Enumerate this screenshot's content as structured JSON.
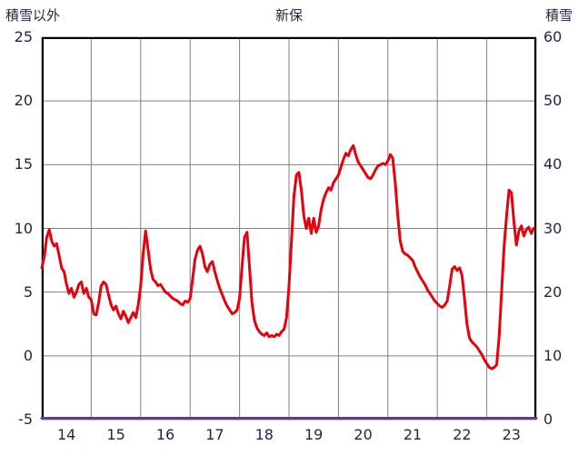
{
  "titles": {
    "left": "積雪以外",
    "center": "新保",
    "right": "積雪"
  },
  "chart_data": {
    "type": "line",
    "title": "新保",
    "x_axis": {
      "min": 14,
      "max": 24,
      "labels": [
        "14",
        "15",
        "16",
        "17",
        "18",
        "19",
        "20",
        "21",
        "22",
        "23"
      ]
    },
    "left_axis": {
      "label": "積雪以外",
      "min": -5,
      "max": 25,
      "ticks": [
        25,
        20,
        15,
        10,
        5,
        0,
        -5
      ]
    },
    "right_axis": {
      "label": "積雪",
      "min": 0,
      "max": 60,
      "ticks": [
        60,
        50,
        40,
        30,
        20,
        10,
        0
      ]
    },
    "grid": true,
    "legend": "none",
    "colors": {
      "temperature_line": "#e8000d",
      "snow_line": "#7030a0",
      "grid": "#808080",
      "border": "#000000",
      "text": "#1f2540",
      "background": "#ffffff"
    },
    "series": [
      {
        "name": "積雪以外",
        "axis": "left",
        "color": "#e8000d",
        "width": 3,
        "points": [
          [
            14.0,
            6.9
          ],
          [
            14.05,
            7.8
          ],
          [
            14.1,
            9.3
          ],
          [
            14.15,
            9.9
          ],
          [
            14.2,
            9.0
          ],
          [
            14.25,
            8.6
          ],
          [
            14.3,
            8.8
          ],
          [
            14.35,
            7.9
          ],
          [
            14.4,
            6.9
          ],
          [
            14.45,
            6.6
          ],
          [
            14.5,
            5.6
          ],
          [
            14.55,
            4.9
          ],
          [
            14.6,
            5.3
          ],
          [
            14.65,
            4.6
          ],
          [
            14.7,
            5.0
          ],
          [
            14.75,
            5.6
          ],
          [
            14.8,
            5.8
          ],
          [
            14.85,
            4.9
          ],
          [
            14.9,
            5.3
          ],
          [
            14.95,
            4.6
          ],
          [
            15.0,
            4.4
          ],
          [
            15.05,
            3.3
          ],
          [
            15.1,
            3.2
          ],
          [
            15.15,
            4.2
          ],
          [
            15.2,
            5.5
          ],
          [
            15.25,
            5.8
          ],
          [
            15.3,
            5.6
          ],
          [
            15.35,
            4.8
          ],
          [
            15.4,
            4.0
          ],
          [
            15.45,
            3.6
          ],
          [
            15.5,
            3.9
          ],
          [
            15.55,
            3.3
          ],
          [
            15.6,
            2.9
          ],
          [
            15.65,
            3.5
          ],
          [
            15.7,
            3.1
          ],
          [
            15.75,
            2.6
          ],
          [
            15.8,
            3.0
          ],
          [
            15.85,
            3.4
          ],
          [
            15.9,
            3.0
          ],
          [
            15.95,
            4.0
          ],
          [
            16.0,
            5.5
          ],
          [
            16.05,
            8.0
          ],
          [
            16.1,
            9.8
          ],
          [
            16.15,
            8.3
          ],
          [
            16.2,
            6.8
          ],
          [
            16.25,
            6.0
          ],
          [
            16.3,
            5.8
          ],
          [
            16.35,
            5.5
          ],
          [
            16.4,
            5.6
          ],
          [
            16.45,
            5.3
          ],
          [
            16.5,
            5.0
          ],
          [
            16.55,
            4.9
          ],
          [
            16.6,
            4.7
          ],
          [
            16.65,
            4.5
          ],
          [
            16.7,
            4.4
          ],
          [
            16.75,
            4.3
          ],
          [
            16.8,
            4.1
          ],
          [
            16.85,
            4.0
          ],
          [
            16.9,
            4.3
          ],
          [
            16.95,
            4.2
          ],
          [
            17.0,
            4.5
          ],
          [
            17.05,
            6.0
          ],
          [
            17.1,
            7.6
          ],
          [
            17.15,
            8.3
          ],
          [
            17.2,
            8.6
          ],
          [
            17.25,
            8.0
          ],
          [
            17.3,
            7.0
          ],
          [
            17.35,
            6.6
          ],
          [
            17.4,
            7.2
          ],
          [
            17.45,
            7.4
          ],
          [
            17.5,
            6.6
          ],
          [
            17.55,
            5.9
          ],
          [
            17.6,
            5.3
          ],
          [
            17.65,
            4.8
          ],
          [
            17.7,
            4.3
          ],
          [
            17.75,
            3.9
          ],
          [
            17.8,
            3.6
          ],
          [
            17.85,
            3.3
          ],
          [
            17.9,
            3.4
          ],
          [
            17.95,
            3.6
          ],
          [
            18.0,
            4.5
          ],
          [
            18.05,
            7.0
          ],
          [
            18.1,
            9.3
          ],
          [
            18.15,
            9.7
          ],
          [
            18.2,
            7.0
          ],
          [
            18.25,
            4.2
          ],
          [
            18.3,
            2.8
          ],
          [
            18.35,
            2.2
          ],
          [
            18.4,
            1.9
          ],
          [
            18.45,
            1.7
          ],
          [
            18.5,
            1.6
          ],
          [
            18.55,
            1.8
          ],
          [
            18.6,
            1.5
          ],
          [
            18.65,
            1.6
          ],
          [
            18.7,
            1.5
          ],
          [
            18.75,
            1.7
          ],
          [
            18.8,
            1.6
          ],
          [
            18.85,
            1.9
          ],
          [
            18.9,
            2.1
          ],
          [
            18.95,
            3.0
          ],
          [
            19.0,
            5.5
          ],
          [
            19.05,
            9.0
          ],
          [
            19.1,
            12.5
          ],
          [
            19.15,
            14.2
          ],
          [
            19.2,
            14.4
          ],
          [
            19.25,
            13.0
          ],
          [
            19.3,
            11.0
          ],
          [
            19.35,
            10.0
          ],
          [
            19.4,
            10.8
          ],
          [
            19.45,
            9.6
          ],
          [
            19.5,
            10.8
          ],
          [
            19.55,
            9.7
          ],
          [
            19.6,
            10.2
          ],
          [
            19.65,
            11.5
          ],
          [
            19.7,
            12.3
          ],
          [
            19.75,
            12.8
          ],
          [
            19.8,
            13.2
          ],
          [
            19.85,
            13.0
          ],
          [
            19.9,
            13.6
          ],
          [
            19.95,
            13.9
          ],
          [
            20.0,
            14.2
          ],
          [
            20.05,
            14.8
          ],
          [
            20.1,
            15.4
          ],
          [
            20.15,
            15.9
          ],
          [
            20.2,
            15.7
          ],
          [
            20.25,
            16.2
          ],
          [
            20.3,
            16.5
          ],
          [
            20.35,
            15.8
          ],
          [
            20.4,
            15.2
          ],
          [
            20.45,
            14.9
          ],
          [
            20.5,
            14.6
          ],
          [
            20.55,
            14.3
          ],
          [
            20.6,
            14.0
          ],
          [
            20.65,
            13.9
          ],
          [
            20.7,
            14.2
          ],
          [
            20.75,
            14.6
          ],
          [
            20.8,
            14.9
          ],
          [
            20.85,
            15.0
          ],
          [
            20.9,
            15.1
          ],
          [
            20.95,
            15.0
          ],
          [
            21.0,
            15.3
          ],
          [
            21.05,
            15.8
          ],
          [
            21.1,
            15.5
          ],
          [
            21.15,
            13.5
          ],
          [
            21.2,
            11.0
          ],
          [
            21.25,
            9.0
          ],
          [
            21.3,
            8.2
          ],
          [
            21.35,
            8.0
          ],
          [
            21.4,
            7.9
          ],
          [
            21.45,
            7.7
          ],
          [
            21.5,
            7.5
          ],
          [
            21.55,
            7.0
          ],
          [
            21.6,
            6.6
          ],
          [
            21.65,
            6.2
          ],
          [
            21.7,
            5.9
          ],
          [
            21.75,
            5.6
          ],
          [
            21.8,
            5.2
          ],
          [
            21.85,
            4.9
          ],
          [
            21.9,
            4.6
          ],
          [
            21.95,
            4.3
          ],
          [
            22.0,
            4.1
          ],
          [
            22.05,
            3.9
          ],
          [
            22.1,
            3.8
          ],
          [
            22.15,
            4.0
          ],
          [
            22.2,
            4.3
          ],
          [
            22.25,
            5.5
          ],
          [
            22.3,
            6.8
          ],
          [
            22.35,
            7.0
          ],
          [
            22.4,
            6.7
          ],
          [
            22.45,
            6.9
          ],
          [
            22.5,
            6.3
          ],
          [
            22.55,
            4.5
          ],
          [
            22.6,
            2.5
          ],
          [
            22.65,
            1.4
          ],
          [
            22.7,
            1.1
          ],
          [
            22.75,
            0.9
          ],
          [
            22.8,
            0.7
          ],
          [
            22.85,
            0.4
          ],
          [
            22.9,
            0.1
          ],
          [
            22.95,
            -0.3
          ],
          [
            23.0,
            -0.6
          ],
          [
            23.05,
            -0.9
          ],
          [
            23.1,
            -1.0
          ],
          [
            23.15,
            -0.9
          ],
          [
            23.2,
            -0.7
          ],
          [
            23.25,
            1.5
          ],
          [
            23.3,
            5.0
          ],
          [
            23.35,
            8.5
          ],
          [
            23.4,
            11.0
          ],
          [
            23.45,
            13.0
          ],
          [
            23.5,
            12.8
          ],
          [
            23.55,
            10.5
          ],
          [
            23.6,
            8.7
          ],
          [
            23.65,
            9.8
          ],
          [
            23.7,
            10.2
          ],
          [
            23.75,
            9.4
          ],
          [
            23.8,
            9.9
          ],
          [
            23.85,
            10.1
          ],
          [
            23.9,
            9.6
          ],
          [
            23.95,
            10.0
          ]
        ]
      },
      {
        "name": "積雪",
        "axis": "right",
        "color": "#7030a0",
        "width": 3,
        "points": [
          [
            14,
            0
          ],
          [
            24,
            0
          ]
        ]
      }
    ]
  }
}
